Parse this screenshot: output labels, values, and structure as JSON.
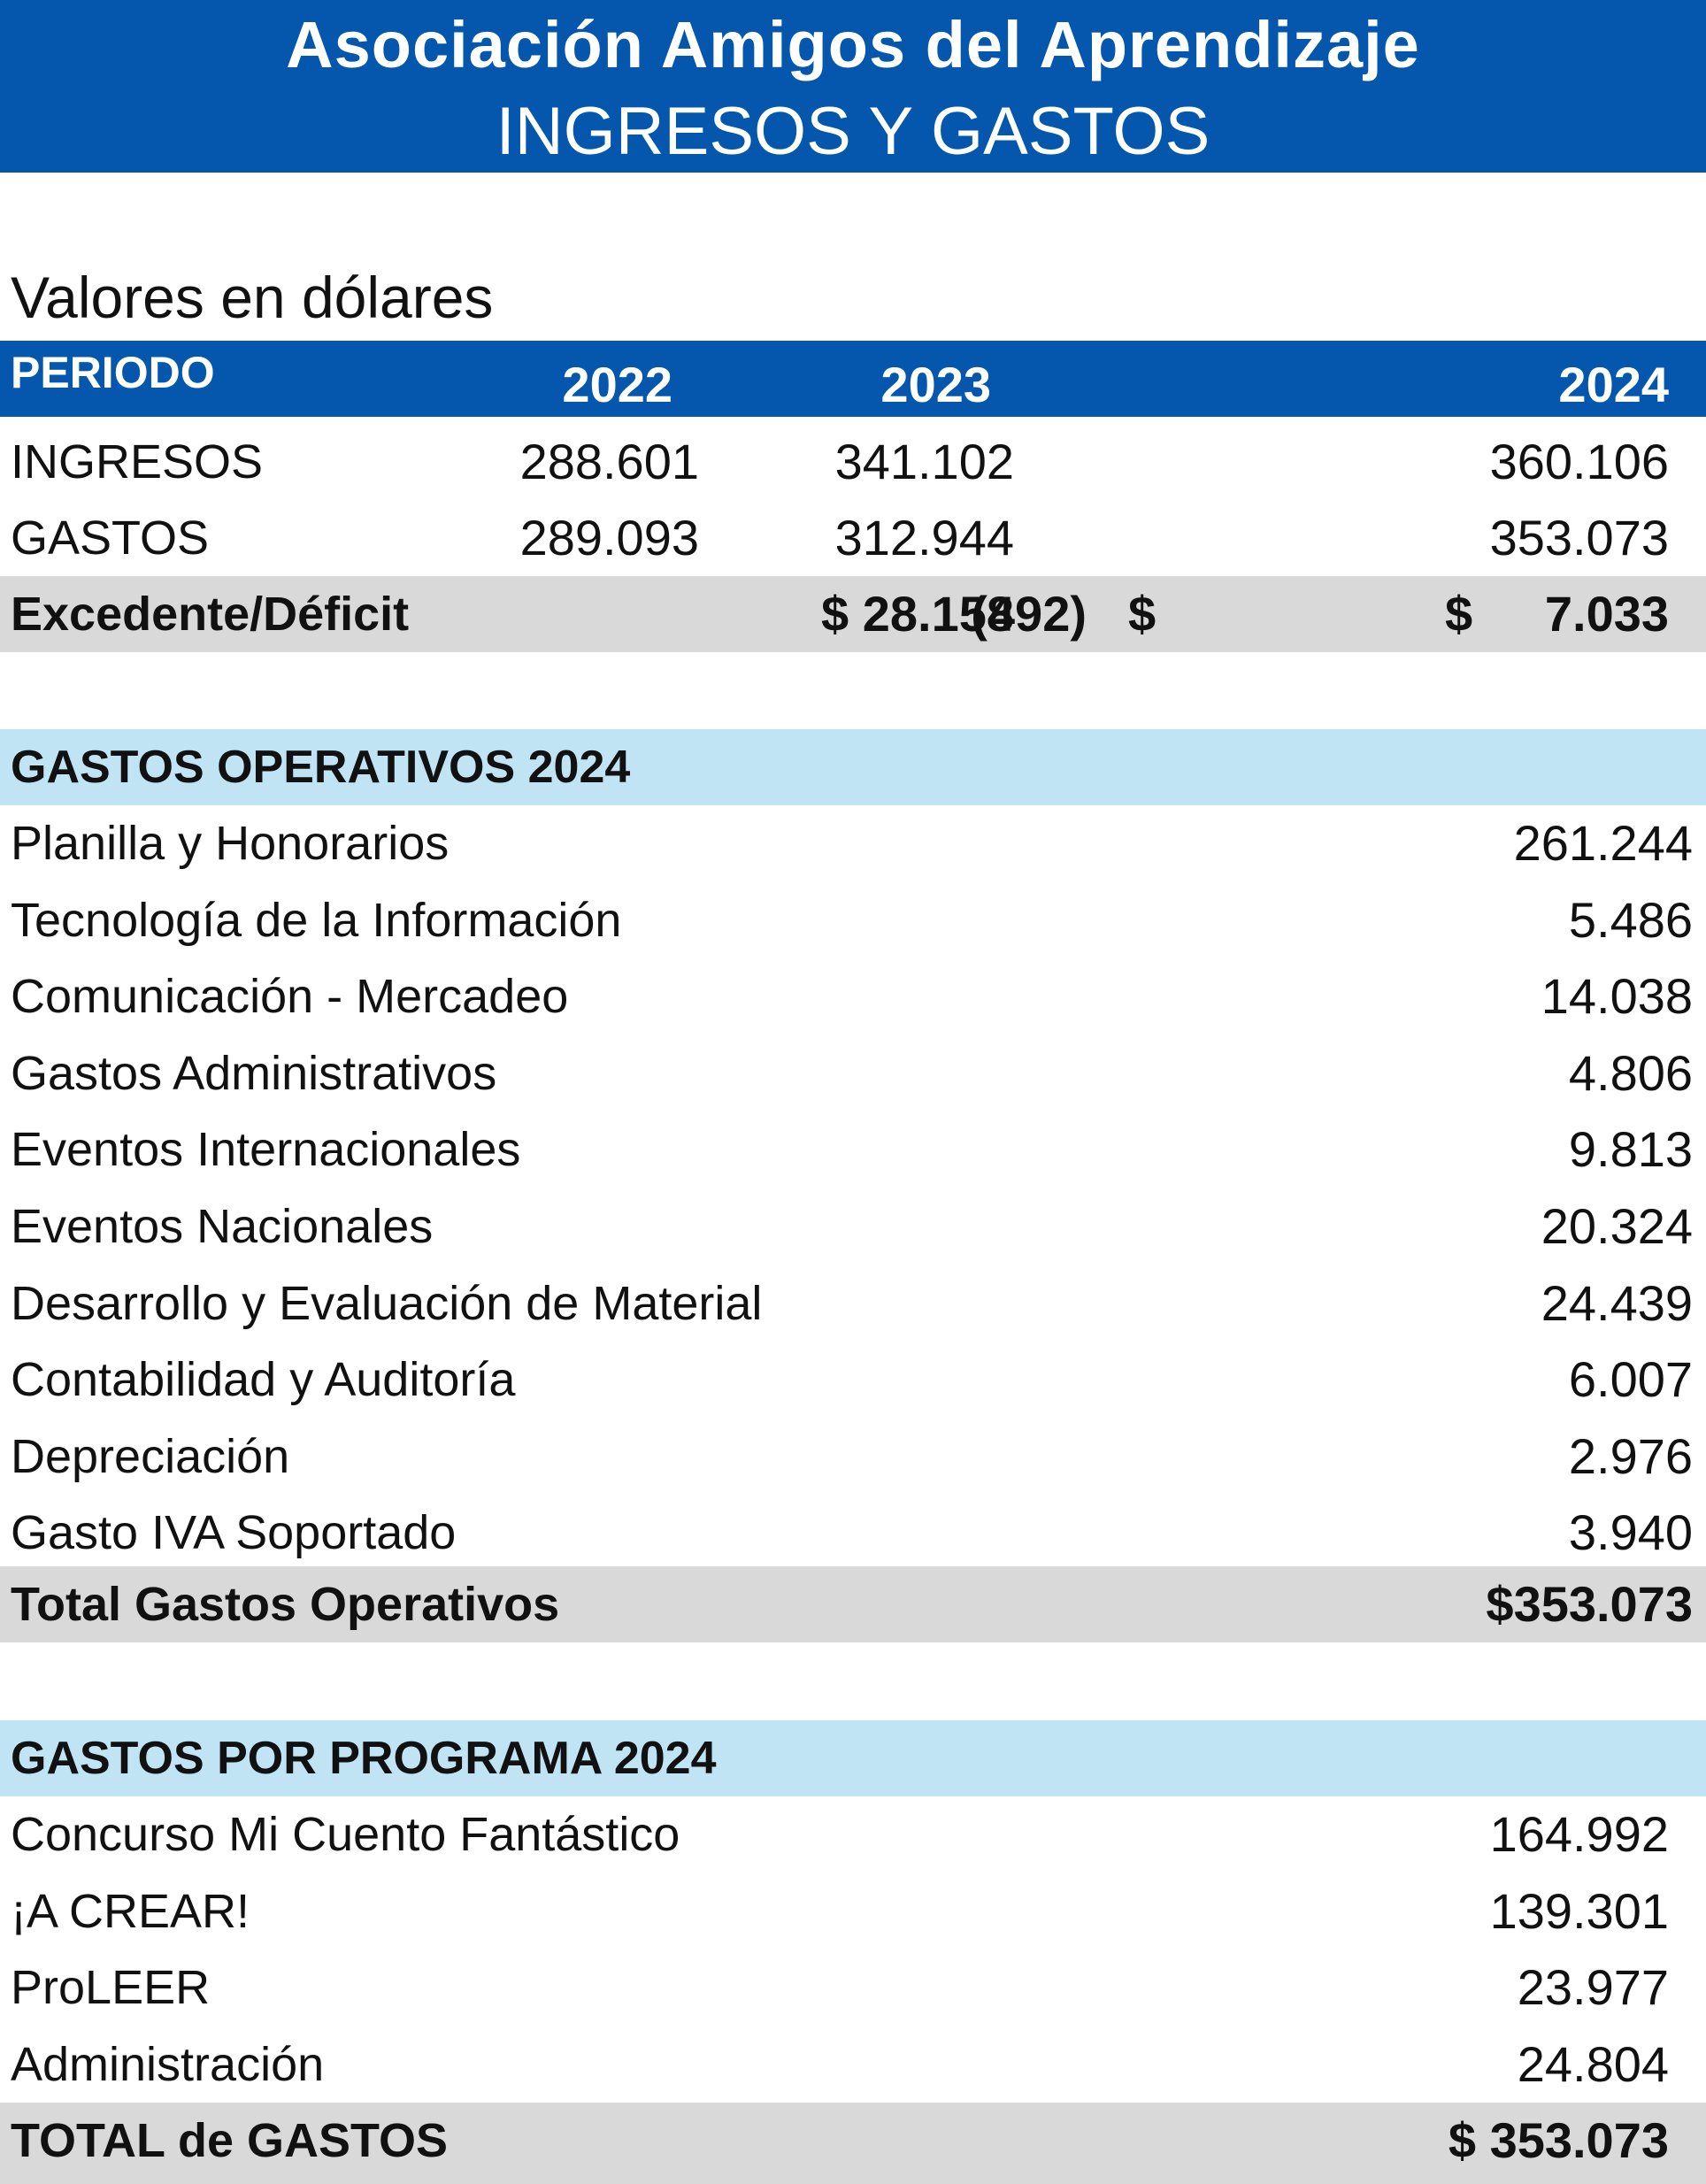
{
  "header": {
    "org": "Asociación Amigos del Aprendizaje",
    "subtitle": "INGRESOS Y GASTOS"
  },
  "caption": "Valores en dólares",
  "summary": {
    "period_label": "PERIODO",
    "years": [
      "2022",
      "2023",
      "2024"
    ],
    "rows": [
      {
        "label": "INGRESOS",
        "values": [
          "288.601",
          "341.102",
          "360.106"
        ]
      },
      {
        "label": "GASTOS",
        "values": [
          "289.093",
          "312.944",
          "353.073"
        ]
      }
    ],
    "result": {
      "label": "Excedente/Déficit",
      "currency": "$",
      "values": [
        "(492)",
        "28.158",
        "7.033"
      ]
    }
  },
  "operating": {
    "title": "GASTOS OPERATIVOS 2024",
    "items": [
      {
        "label": "Planilla y Honorarios",
        "value": "261.244"
      },
      {
        "label": "Tecnología de la Información",
        "value": "5.486"
      },
      {
        "label": "Comunicación - Mercadeo",
        "value": "14.038"
      },
      {
        "label": "Gastos Administrativos",
        "value": "4.806"
      },
      {
        "label": "Eventos Internacionales",
        "value": "9.813"
      },
      {
        "label": "Eventos Nacionales",
        "value": "20.324"
      },
      {
        "label": "Desarrollo y Evaluación de Material",
        "value": "24.439"
      },
      {
        "label": "Contabilidad y Auditoría",
        "value": "6.007"
      },
      {
        "label": "Depreciación",
        "value": "2.976"
      },
      {
        "label": "Gasto IVA Soportado",
        "value": "3.940"
      }
    ],
    "total_label": "Total Gastos Operativos",
    "total_value": "$353.073"
  },
  "program": {
    "title": "GASTOS POR PROGRAMA 2024",
    "items": [
      {
        "label": "Concurso Mi Cuento Fantástico",
        "value": "164.992"
      },
      {
        "label": " ¡A CREAR!",
        "value": "139.301"
      },
      {
        "label": "ProLEER",
        "value": "23.977"
      },
      {
        "label": "Administración",
        "value": "24.804"
      }
    ],
    "total_label": "TOTAL de GASTOS",
    "total_value": "$ 353.073"
  },
  "colors": {
    "header_blue": "#0457ad",
    "section_light_blue": "#c1e4f5",
    "total_grey": "#d9d9d9"
  }
}
